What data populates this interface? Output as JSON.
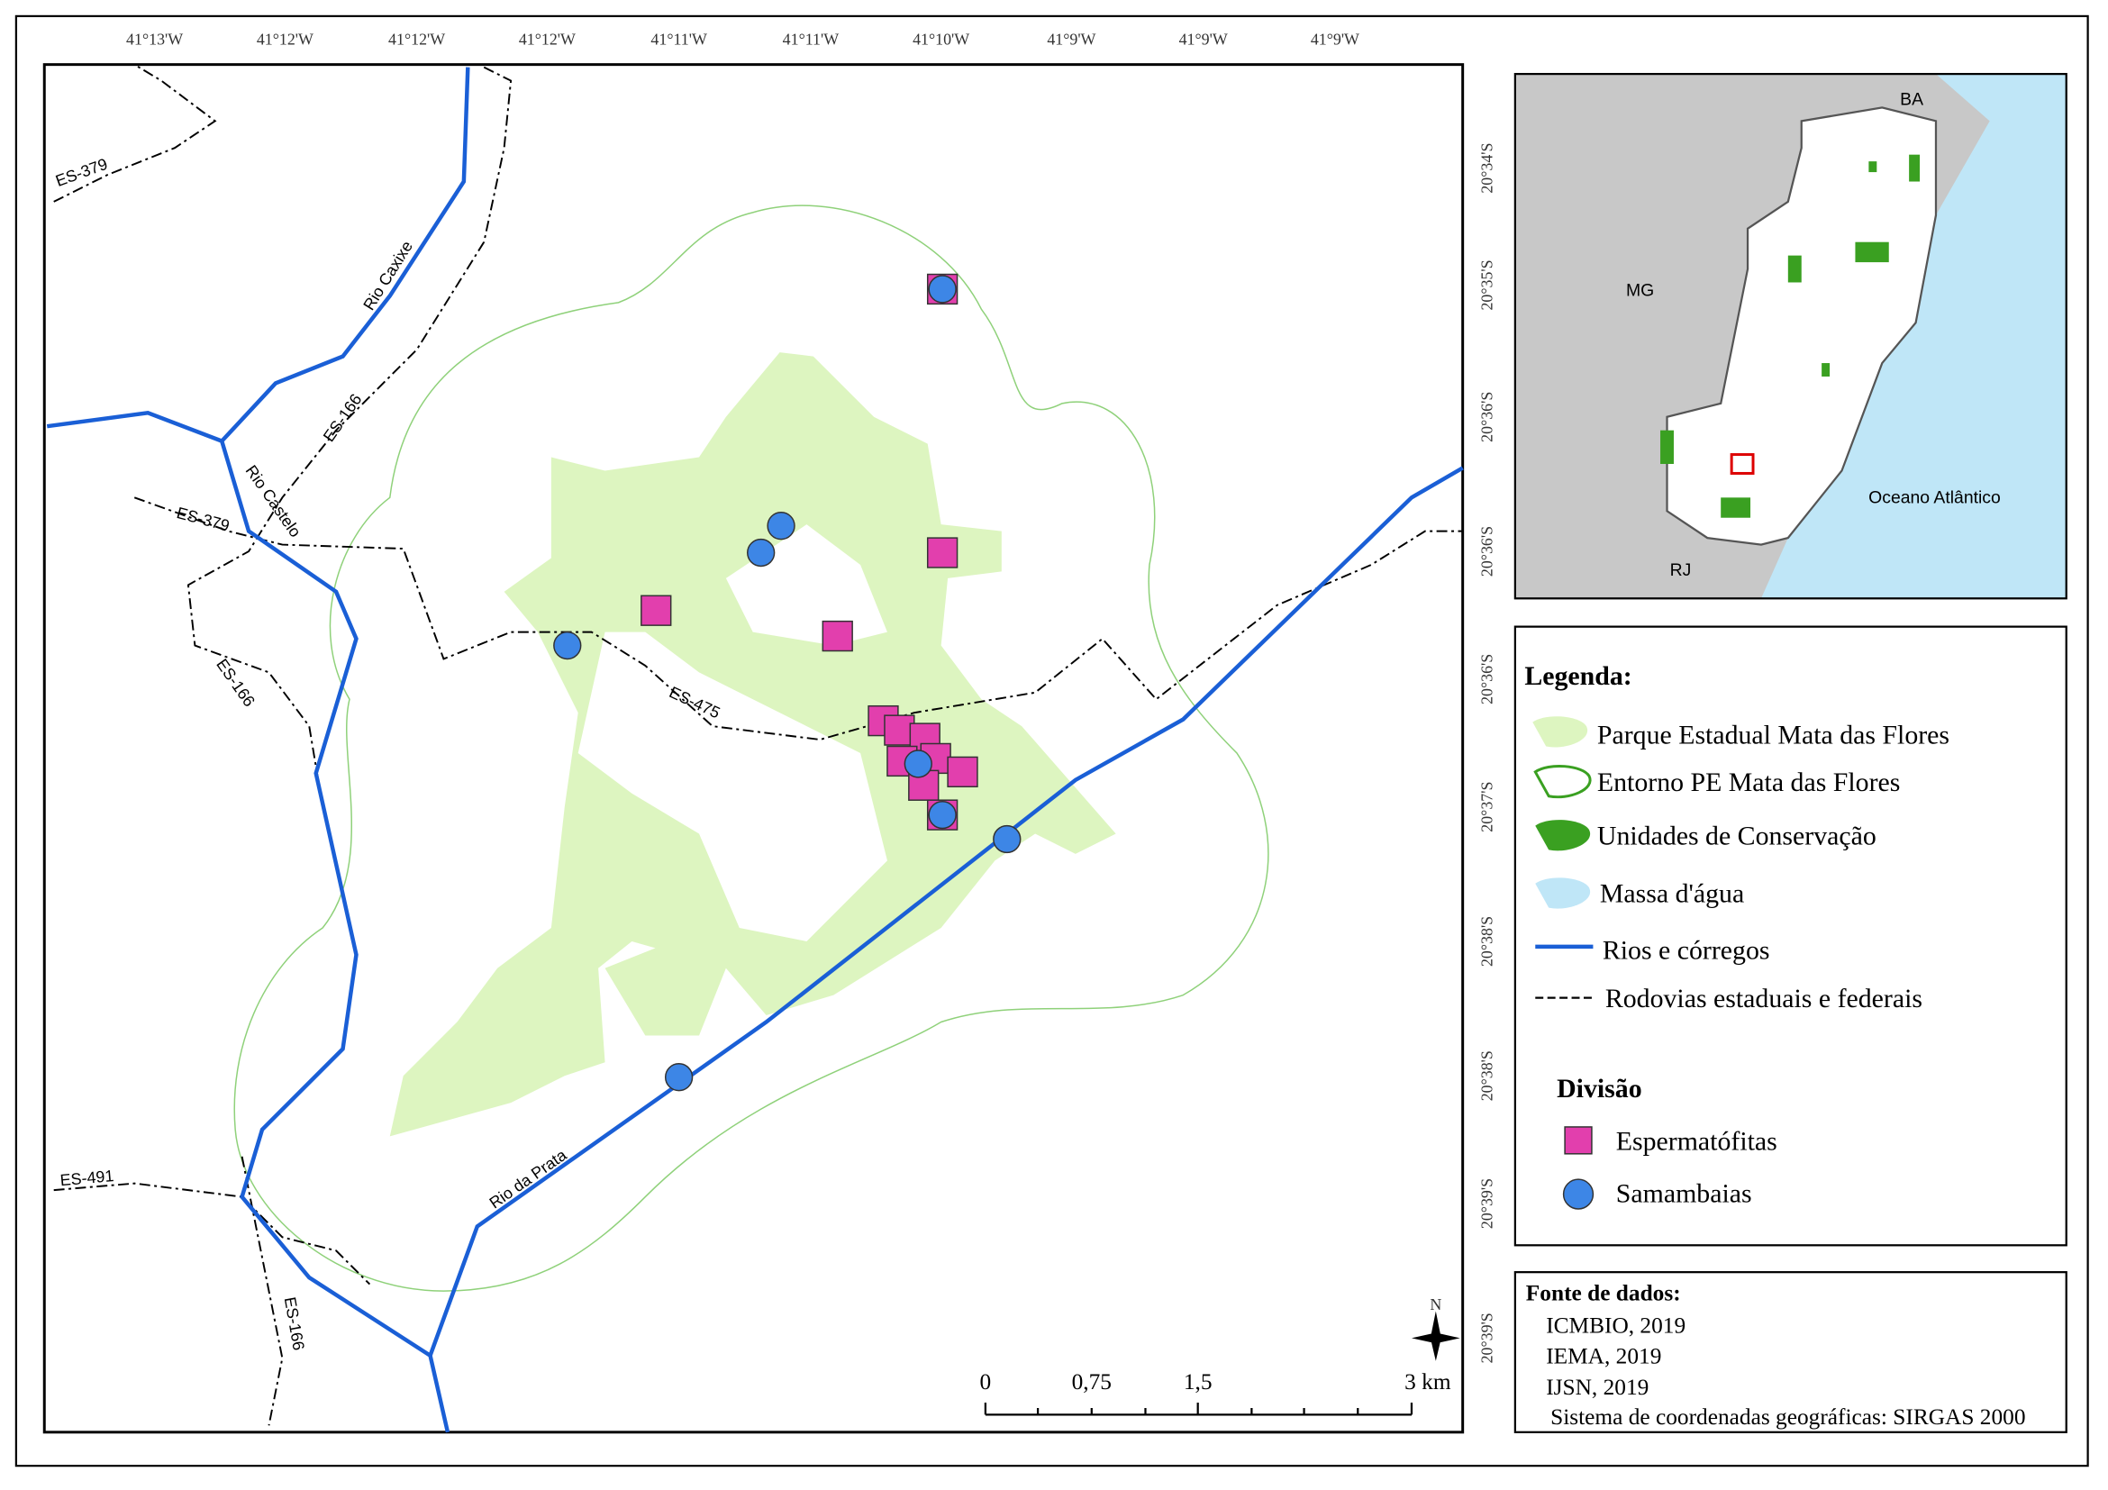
{
  "map": {
    "top_labels": [
      "41°13'W",
      "41°12'W",
      "41°12'W",
      "41°12'W",
      "41°11'W",
      "41°11'W",
      "41°10'W",
      "41°9'W",
      "41°9'W",
      "41°9'W"
    ],
    "right_labels": [
      "20°34'S",
      "20°35'S",
      "20°36'S",
      "20°36'S",
      "20°36'S",
      "20°37'S",
      "20°38'S",
      "20°38'S",
      "20°39'S",
      "20°39'S"
    ],
    "road_labels": [
      "ES-379",
      "ES-166",
      "ES-379",
      "ES-166",
      "ES-475",
      "ES-491",
      "ES-166"
    ],
    "river_labels": [
      "Rio Caxixe",
      "Rio Castelo",
      "Rio da Prata"
    ],
    "north": "N",
    "scale": [
      "0",
      "0,75",
      "1,5",
      "3 km"
    ]
  },
  "inset": {
    "labels": [
      "BA",
      "MG",
      "Oceano Atlântico",
      "RJ"
    ]
  },
  "legend": {
    "title": "Legenda:",
    "items": [
      "Parque Estadual Mata das Flores",
      "Entorno PE Mata das Flores",
      "Unidades de Conservação",
      "Massa d'água",
      "Rios e córregos",
      "Rodovias estaduais e federais"
    ],
    "division_title": "Divisão",
    "division_items": [
      "Espermatófitas",
      "Samambaias"
    ]
  },
  "sources": {
    "title": "Fonte de dados:",
    "items": [
      "ICMBIO, 2019",
      "IEMA, 2019",
      "IJSN, 2019"
    ],
    "crs": "Sistema de coordenadas geográficas: SIRGAS 2000"
  }
}
